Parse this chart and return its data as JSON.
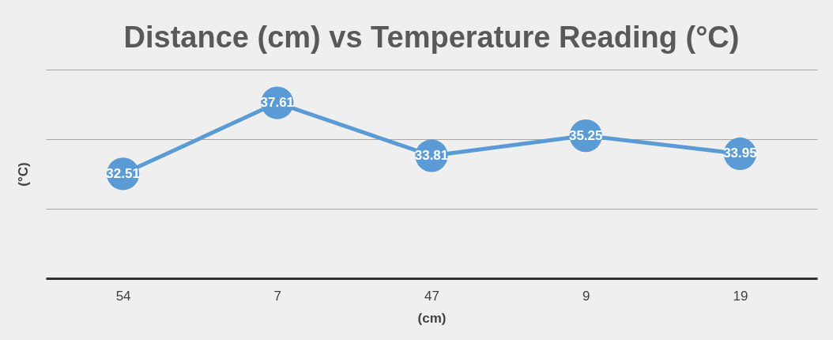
{
  "chart_data": {
    "type": "line",
    "title": "Distance (cm) vs Temperature Reading (°C)",
    "xlabel": "(cm)",
    "ylabel": "(°C)",
    "categories": [
      "54",
      "7",
      "47",
      "9",
      "19"
    ],
    "series": [
      {
        "color": "#5b9bd5",
        "values": [
          32.51,
          37.61,
          33.81,
          35.25,
          33.95
        ]
      }
    ],
    "ylim": [
      25,
      40
    ],
    "yticks": [
      {
        "value": 25,
        "label": null
      },
      {
        "value": 30,
        "label": null
      },
      {
        "value": 35,
        "label": null
      },
      {
        "value": 40,
        "label": null
      }
    ],
    "tick_labels": "x",
    "grid": "y",
    "marker": "circle",
    "line_style": "solid",
    "data_labels": true
  }
}
